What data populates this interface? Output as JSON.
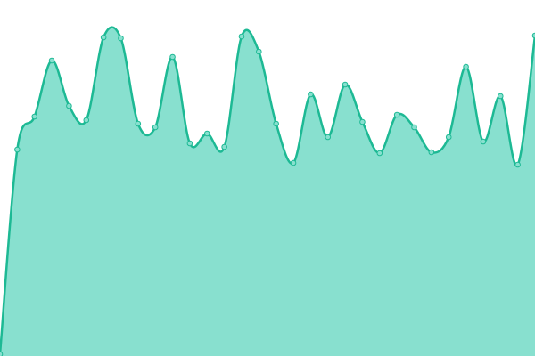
{
  "chart_data": {
    "type": "area",
    "categories": [
      null,
      null,
      null,
      null,
      null,
      null,
      null,
      null,
      null,
      null,
      null,
      null,
      null,
      null,
      null,
      null,
      null,
      null,
      null,
      null,
      null,
      null,
      null,
      null,
      null,
      null,
      null,
      null,
      null,
      null,
      null,
      null
    ],
    "series": [
      {
        "color": "#1db994",
        "fill": "#88e0cf",
        "values": [
          2,
          232,
          269,
          332,
          281,
          265,
          358,
          357,
          261,
          257,
          336,
          239,
          250,
          235,
          359,
          342,
          261,
          217,
          294,
          246,
          305,
          263,
          228,
          271,
          257,
          229,
          246,
          325,
          241,
          292,
          215,
          360
        ]
      }
    ],
    "ylim": [
      0,
      400
    ]
  }
}
